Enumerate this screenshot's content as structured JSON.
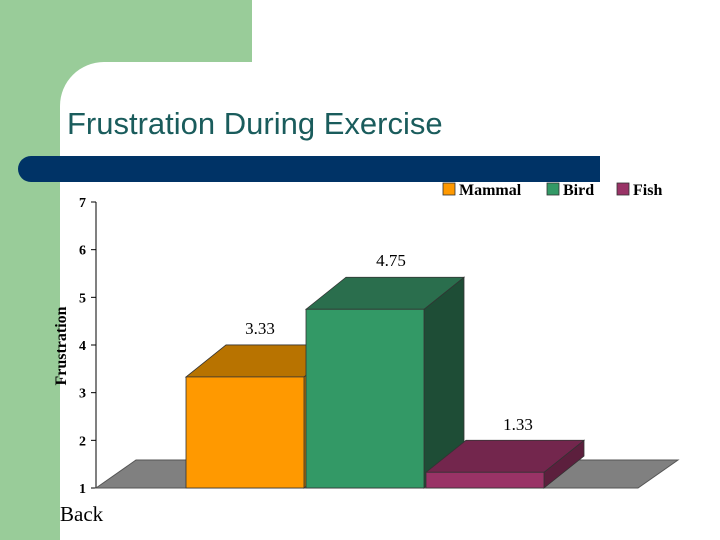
{
  "slide": {
    "title": "Frustration During Exercise",
    "back_label": "Back"
  },
  "colors": {
    "background_accent": "#99cc99",
    "title_bar": "#003366",
    "title_text": "#1a5c5c",
    "floor": "#808080"
  },
  "chart_data": {
    "type": "bar",
    "categories": [
      "Mammal",
      "Bird",
      "Fish"
    ],
    "values": [
      3.33,
      4.75,
      1.33
    ],
    "value_labels": [
      "3.33",
      "4.75",
      "1.33"
    ],
    "ylabel": "Frustration",
    "ylim": [
      1,
      7
    ],
    "yticks": [
      1,
      2,
      3,
      4,
      5,
      6,
      7
    ],
    "grid": false,
    "legend_position": "top-right",
    "three_d": true,
    "series_colors": {
      "Mammal": {
        "front": "#ff9900",
        "top": "#b87300",
        "side": "#b87300"
      },
      "Bird": {
        "front": "#339966",
        "top": "#2a6e4d",
        "side": "#1e4d36"
      },
      "Fish": {
        "front": "#993366",
        "top": "#73264d",
        "side": "#5c1f3d"
      }
    }
  }
}
